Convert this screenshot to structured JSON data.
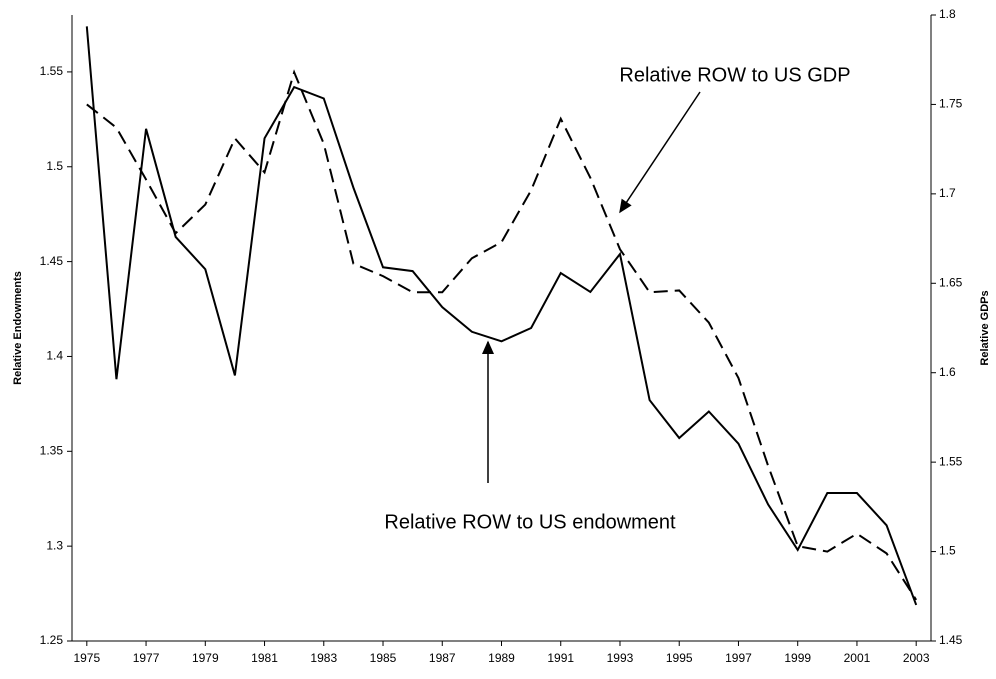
{
  "chart_data": {
    "type": "line",
    "x": [
      1975,
      1976,
      1977,
      1978,
      1979,
      1980,
      1981,
      1982,
      1983,
      1984,
      1985,
      1986,
      1987,
      1988,
      1989,
      1990,
      1991,
      1992,
      1993,
      1994,
      1995,
      1996,
      1997,
      1998,
      1999,
      2000,
      2001,
      2002,
      2003
    ],
    "xlim": [
      1974.5,
      2003.5
    ],
    "xticks": [
      1975,
      1977,
      1979,
      1981,
      1983,
      1985,
      1987,
      1989,
      1991,
      1993,
      1995,
      1997,
      1999,
      2001,
      2003
    ],
    "ylabel": "Relative Endowments",
    "y2label": "Relative GDPs",
    "ylim": [
      1.25,
      1.58
    ],
    "yticks": [
      1.25,
      1.3,
      1.35,
      1.4,
      1.45,
      1.5,
      1.55
    ],
    "y2lim": [
      1.45,
      1.8
    ],
    "y2ticks": [
      1.45,
      1.5,
      1.55,
      1.6,
      1.65,
      1.7,
      1.75,
      1.8
    ],
    "series": [
      {
        "name": "Relative ROW to US endowment",
        "color": "#000000",
        "dash": false,
        "axis": "y",
        "values": [
          1.574,
          1.388,
          1.52,
          1.463,
          1.446,
          1.39,
          1.515,
          1.542,
          1.536,
          1.489,
          1.447,
          1.445,
          1.426,
          1.413,
          1.408,
          1.415,
          1.444,
          1.434,
          1.454,
          1.377,
          1.357,
          1.371,
          1.354,
          1.322,
          1.298,
          1.328,
          1.328,
          1.311,
          1.269
        ]
      },
      {
        "name": "Relative ROW to US GDP",
        "color": "#000000",
        "dash": true,
        "axis": "y2",
        "values": [
          1.75,
          1.737,
          1.708,
          1.678,
          1.694,
          1.731,
          1.712,
          1.768,
          1.728,
          1.661,
          1.654,
          1.645,
          1.645,
          1.664,
          1.673,
          1.702,
          1.742,
          1.709,
          1.669,
          1.645,
          1.646,
          1.628,
          1.597,
          1.548,
          1.503,
          1.5,
          1.51,
          1.499,
          1.473
        ]
      }
    ]
  }
}
